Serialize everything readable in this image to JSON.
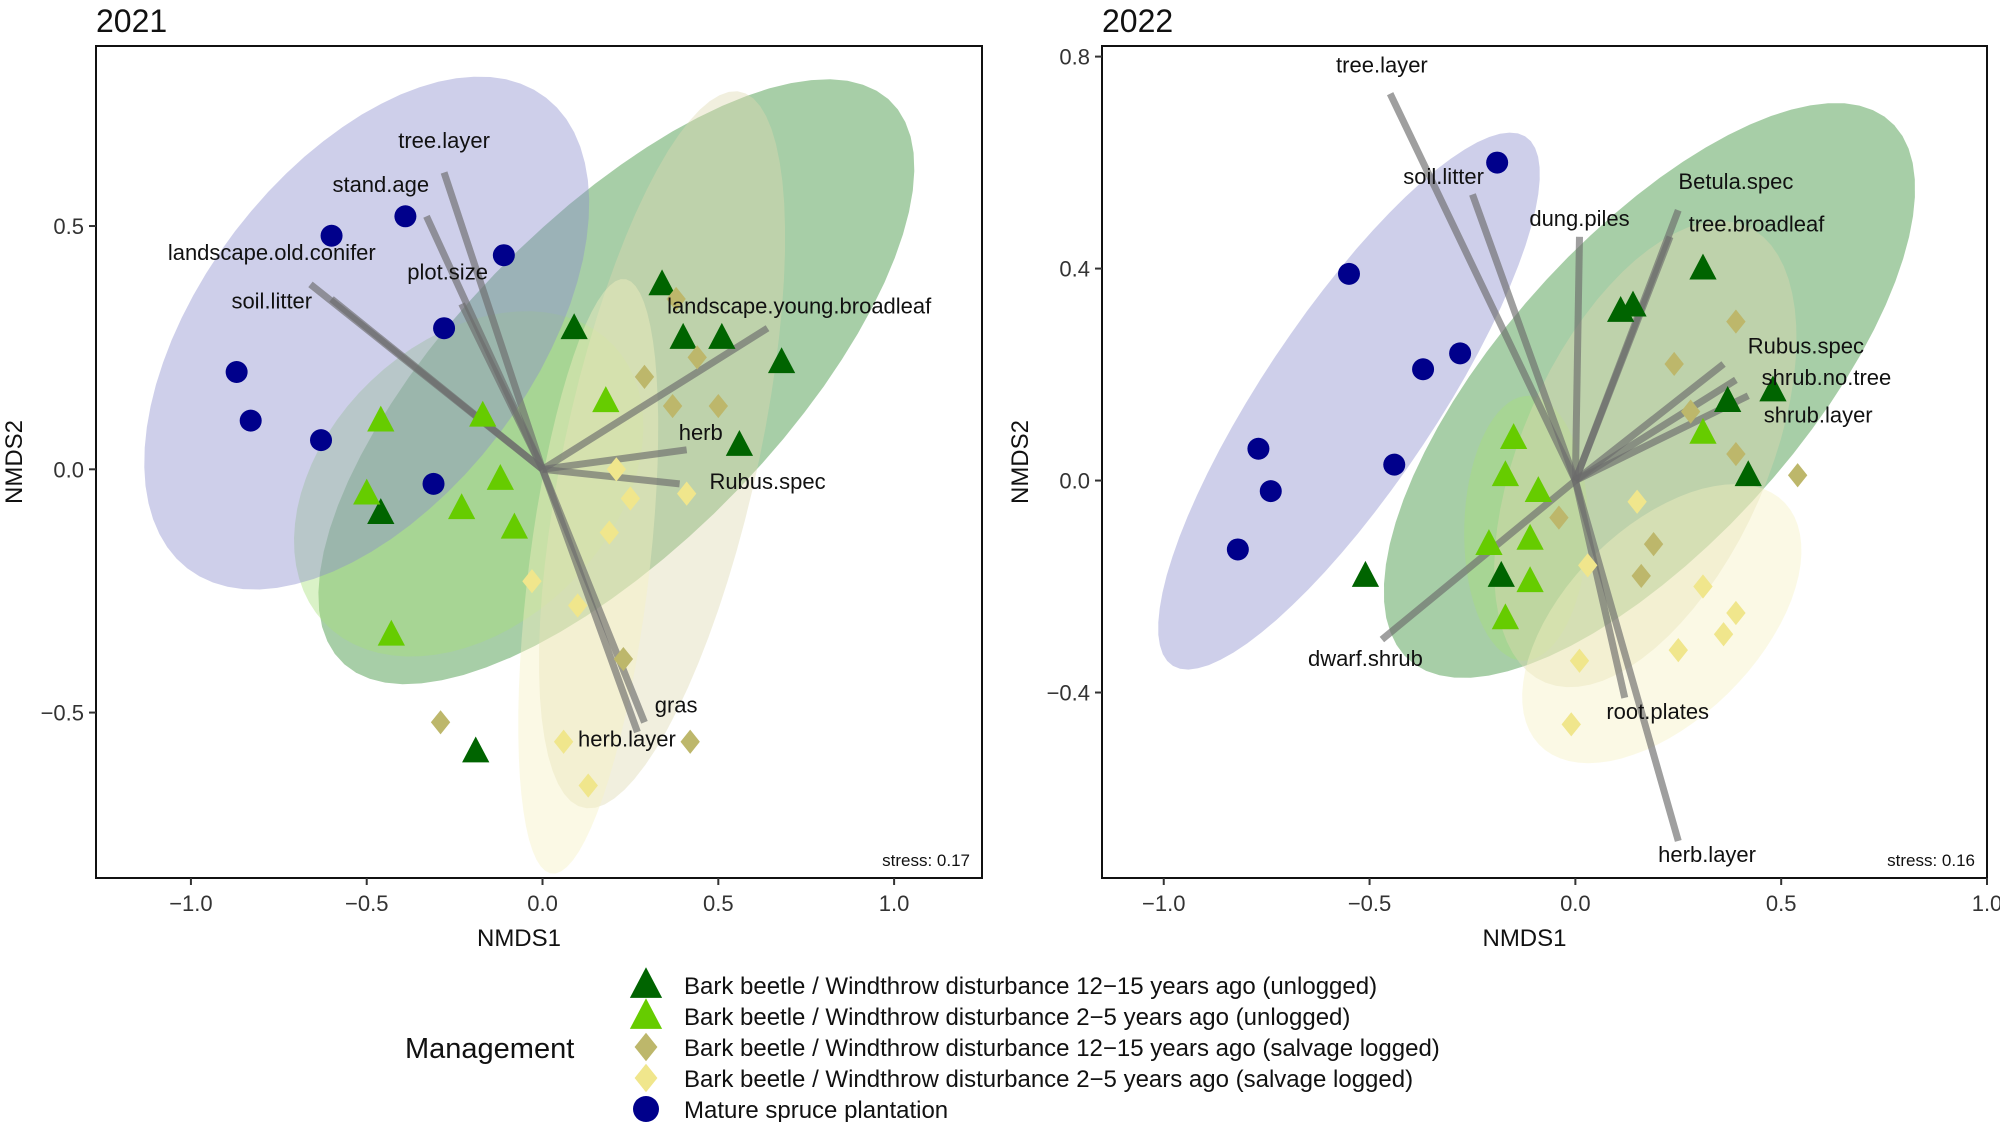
{
  "chart_data": [
    {
      "type": "scatter",
      "title": "2021",
      "xlabel": "NMDS1",
      "ylabel": "NMDS2",
      "xlim": [
        -1.27,
        1.25
      ],
      "ylim": [
        -0.84,
        0.87
      ],
      "xticks": [
        -1.0,
        -0.5,
        0.0,
        0.5,
        1.0
      ],
      "xtick_labels": [
        "−1.0",
        "−0.5",
        "0.0",
        "0.5",
        "1.0"
      ],
      "yticks": [
        -0.5,
        0.0,
        0.5
      ],
      "ytick_labels": [
        "−0.5",
        "0.0",
        "0.5"
      ],
      "stress": "stress: 0.17",
      "series": [
        {
          "name": "Bark beetle / Windthrow disturbance 12−15 years ago (unlogged)",
          "group": "dg",
          "points": [
            [
              0.34,
              0.38
            ],
            [
              0.09,
              0.29
            ],
            [
              0.4,
              0.27
            ],
            [
              0.51,
              0.27
            ],
            [
              0.68,
              0.22
            ],
            [
              0.56,
              0.05
            ],
            [
              -0.46,
              -0.09
            ],
            [
              -0.19,
              -0.58
            ]
          ],
          "ellipse": {
            "center": [
              0.21,
              0.18
            ],
            "a": 0.98,
            "b": 0.38,
            "angle_deg": 33
          }
        },
        {
          "name": "Bark beetle / Windthrow disturbance 2−5 years ago (unlogged)",
          "group": "lg",
          "points": [
            [
              -0.46,
              0.1
            ],
            [
              -0.17,
              0.11
            ],
            [
              0.18,
              0.14
            ],
            [
              -0.5,
              -0.05
            ],
            [
              -0.12,
              -0.02
            ],
            [
              -0.23,
              -0.08
            ],
            [
              -0.08,
              -0.12
            ],
            [
              -0.43,
              -0.34
            ]
          ],
          "ellipse": {
            "center": [
              -0.21,
              -0.03
            ],
            "a": 0.52,
            "b": 0.32,
            "angle_deg": 22
          }
        },
        {
          "name": "Bark beetle / Windthrow disturbance 12−15 years ago (salvage logged)",
          "group": "ol",
          "points": [
            [
              0.38,
              0.35
            ],
            [
              0.29,
              0.19
            ],
            [
              0.44,
              0.23
            ],
            [
              0.37,
              0.13
            ],
            [
              0.5,
              0.13
            ],
            [
              0.23,
              -0.39
            ],
            [
              -0.29,
              -0.52
            ],
            [
              0.42,
              -0.56
            ]
          ],
          "ellipse": {
            "center": [
              0.34,
              0.04
            ],
            "a": 0.77,
            "b": 0.27,
            "angle_deg": 72
          }
        },
        {
          "name": "Bark beetle / Windthrow disturbance 2−5 years ago (salvage logged)",
          "group": "ly",
          "points": [
            [
              0.21,
              0.0
            ],
            [
              0.41,
              -0.05
            ],
            [
              0.25,
              -0.06
            ],
            [
              0.19,
              -0.13
            ],
            [
              -0.03,
              -0.23
            ],
            [
              0.1,
              -0.28
            ],
            [
              0.06,
              -0.56
            ],
            [
              0.13,
              -0.65
            ]
          ],
          "ellipse": {
            "center": [
              0.13,
              -0.22
            ],
            "a": 0.62,
            "b": 0.17,
            "angle_deg": 80
          }
        },
        {
          "name": "Mature spruce plantation",
          "group": "mt",
          "points": [
            [
              -0.6,
              0.48
            ],
            [
              -0.39,
              0.52
            ],
            [
              -0.11,
              0.44
            ],
            [
              -0.28,
              0.29
            ],
            [
              -0.87,
              0.2
            ],
            [
              -0.83,
              0.1
            ],
            [
              -0.63,
              0.06
            ],
            [
              -0.31,
              -0.03
            ]
          ],
          "ellipse": {
            "center": [
              -0.5,
              0.28
            ],
            "a": 0.72,
            "b": 0.4,
            "angle_deg": 35
          }
        }
      ],
      "vectors": [
        {
          "label": "tree.layer",
          "end": [
            -0.28,
            0.61
          ],
          "label_at": [
            -0.28,
            0.66
          ]
        },
        {
          "label": "stand.age",
          "end": [
            -0.33,
            0.52
          ],
          "label_at": [
            -0.46,
            0.57
          ]
        },
        {
          "label": "plot.size",
          "end": [
            -0.23,
            0.34
          ],
          "label_at": [
            -0.27,
            0.39
          ]
        },
        {
          "label": "landscape.old.conifer",
          "end": [
            -0.66,
            0.38
          ],
          "label_at": [
            -0.77,
            0.43
          ]
        },
        {
          "label": "soil.litter",
          "end": [
            -0.6,
            0.35
          ],
          "label_at": [
            -0.77,
            0.33
          ]
        },
        {
          "label": "landscape.young.broadleaf",
          "end": [
            0.64,
            0.29
          ],
          "label_at": [
            0.73,
            0.32
          ]
        },
        {
          "label": "herb",
          "end": [
            0.41,
            0.04
          ],
          "label_at": [
            0.45,
            0.06
          ]
        },
        {
          "label": "Rubus.spec",
          "end": [
            0.39,
            -0.03
          ],
          "label_at": [
            0.64,
            -0.04
          ]
        },
        {
          "label": "gras",
          "end": [
            0.29,
            -0.52
          ],
          "label_at": [
            0.38,
            -0.5
          ]
        },
        {
          "label": "herb.layer",
          "end": [
            0.27,
            -0.54
          ],
          "label_at": [
            0.24,
            -0.57
          ]
        }
      ]
    },
    {
      "type": "scatter",
      "title": "2022",
      "xlabel": "NMDS1",
      "ylabel": "NMDS2",
      "xlim": [
        -1.15,
        1.0
      ],
      "ylim": [
        -0.75,
        0.82
      ],
      "xticks": [
        -1.0,
        -0.5,
        0.0,
        0.5,
        1.0
      ],
      "xtick_labels": [
        "−1.0",
        "−0.5",
        "0.0",
        "0.5",
        "1.0"
      ],
      "yticks": [
        -0.4,
        0.0,
        0.4,
        0.8
      ],
      "ytick_labels": [
        "−0.4",
        "0.0",
        "0.4",
        "0.8"
      ],
      "stress": "stress: 0.16",
      "series": [
        {
          "name": "Bark beetle / Windthrow disturbance 12−15 years ago (unlogged)",
          "group": "dg",
          "points": [
            [
              0.31,
              0.4
            ],
            [
              0.14,
              0.33
            ],
            [
              0.11,
              0.32
            ],
            [
              0.48,
              0.17
            ],
            [
              0.37,
              0.15
            ],
            [
              0.42,
              0.01
            ],
            [
              -0.51,
              -0.18
            ],
            [
              -0.18,
              -0.18
            ]
          ],
          "ellipse": {
            "center": [
              0.18,
              0.17
            ],
            "a": 0.78,
            "b": 0.32,
            "angle_deg": 38
          }
        },
        {
          "name": "Bark beetle / Windthrow disturbance 2−5 years ago (unlogged)",
          "group": "lg",
          "points": [
            [
              -0.15,
              0.08
            ],
            [
              -0.17,
              0.01
            ],
            [
              -0.09,
              -0.02
            ],
            [
              -0.21,
              -0.12
            ],
            [
              -0.11,
              -0.11
            ],
            [
              -0.11,
              -0.19
            ],
            [
              -0.17,
              -0.26
            ],
            [
              0.31,
              0.09
            ]
          ],
          "ellipse": {
            "center": [
              -0.12,
              -0.09
            ],
            "a": 0.25,
            "b": 0.15,
            "angle_deg": 88
          }
        },
        {
          "name": "Bark beetle / Windthrow disturbance 12−15 years ago (salvage logged)",
          "group": "ol",
          "points": [
            [
              0.39,
              0.3
            ],
            [
              0.24,
              0.22
            ],
            [
              0.28,
              0.13
            ],
            [
              0.39,
              0.05
            ],
            [
              0.54,
              0.01
            ],
            [
              -0.04,
              -0.07
            ],
            [
              0.19,
              -0.12
            ],
            [
              0.16,
              -0.18
            ]
          ],
          "ellipse": {
            "center": [
              0.17,
              0.05
            ],
            "a": 0.5,
            "b": 0.28,
            "angle_deg": 55
          }
        },
        {
          "name": "Bark beetle / Windthrow disturbance 2−5 years ago (salvage logged)",
          "group": "ly",
          "points": [
            [
              0.15,
              -0.04
            ],
            [
              0.31,
              -0.2
            ],
            [
              0.39,
              -0.25
            ],
            [
              0.36,
              -0.29
            ],
            [
              0.25,
              -0.32
            ],
            [
              0.01,
              -0.34
            ],
            [
              -0.01,
              -0.46
            ],
            [
              0.03,
              -0.16
            ]
          ],
          "ellipse": {
            "center": [
              0.21,
              -0.27
            ],
            "a": 0.38,
            "b": 0.2,
            "angle_deg": 32
          }
        },
        {
          "name": "Mature spruce plantation",
          "group": "mt",
          "points": [
            [
              -0.19,
              0.6
            ],
            [
              -0.55,
              0.39
            ],
            [
              -0.28,
              0.24
            ],
            [
              -0.37,
              0.21
            ],
            [
              -0.44,
              0.03
            ],
            [
              -0.77,
              0.06
            ],
            [
              -0.74,
              -0.02
            ],
            [
              -0.82,
              -0.13
            ]
          ],
          "ellipse": {
            "center": [
              -0.55,
              0.15
            ],
            "a": 0.66,
            "b": 0.19,
            "angle_deg": 48
          }
        }
      ],
      "vectors": [
        {
          "label": "tree.layer",
          "end": [
            -0.45,
            0.73
          ],
          "label_at": [
            -0.47,
            0.77
          ]
        },
        {
          "label": "soil.litter",
          "end": [
            -0.25,
            0.54
          ],
          "label_at": [
            -0.32,
            0.56
          ]
        },
        {
          "label": "dung.piles",
          "end": [
            0.01,
            0.46
          ],
          "label_at": [
            0.01,
            0.48
          ]
        },
        {
          "label": "Betula.spec",
          "end": [
            0.25,
            0.51
          ],
          "label_at": [
            0.39,
            0.55
          ]
        },
        {
          "label": "tree.broadleaf",
          "end": [
            0.23,
            0.46
          ],
          "label_at": [
            0.44,
            0.47
          ]
        },
        {
          "label": "Rubus.spec",
          "end": [
            0.36,
            0.22
          ],
          "label_at": [
            0.56,
            0.24
          ]
        },
        {
          "label": "shrub.no.tree",
          "end": [
            0.39,
            0.19
          ],
          "label_at": [
            0.61,
            0.18
          ]
        },
        {
          "label": "shrub.layer",
          "end": [
            0.42,
            0.16
          ],
          "label_at": [
            0.59,
            0.11
          ]
        },
        {
          "label": "dwarf.shrub",
          "end": [
            -0.47,
            -0.3
          ],
          "label_at": [
            -0.51,
            -0.35
          ]
        },
        {
          "label": "root.plates",
          "end": [
            0.12,
            -0.41
          ],
          "label_at": [
            0.2,
            -0.45
          ]
        },
        {
          "label": "herb.layer",
          "end": [
            0.25,
            -0.68
          ],
          "label_at": [
            0.32,
            -0.72
          ]
        }
      ]
    }
  ],
  "legend": {
    "title": "Management",
    "items": [
      {
        "label": "Bark beetle / Windthrow disturbance 12−15 years ago (unlogged)",
        "group": "dg",
        "shape": "triangle"
      },
      {
        "label": "Bark beetle / Windthrow disturbance 2−5 years ago (unlogged)",
        "group": "lg",
        "shape": "triangle"
      },
      {
        "label": "Bark beetle / Windthrow disturbance 12−15 years ago (salvage logged)",
        "group": "ol",
        "shape": "diamond"
      },
      {
        "label": "Bark beetle / Windthrow disturbance 2−5 years ago (salvage logged)",
        "group": "ly",
        "shape": "diamond"
      },
      {
        "label": "Mature spruce plantation",
        "group": "mt",
        "shape": "circle"
      }
    ]
  },
  "colors": {
    "dg": {
      "point": "#006400",
      "fill": "#2e8b2e"
    },
    "lg": {
      "point": "#66cc00",
      "fill": "#a6e07a"
    },
    "ol": {
      "point": "#bdb76b",
      "fill": "#ddd9b0"
    },
    "ly": {
      "point": "#f0e68c",
      "fill": "#f5f0c0"
    },
    "mt": {
      "point": "#00008b",
      "fill": "#8a8ccc"
    },
    "vector": "#6b6b6b"
  }
}
